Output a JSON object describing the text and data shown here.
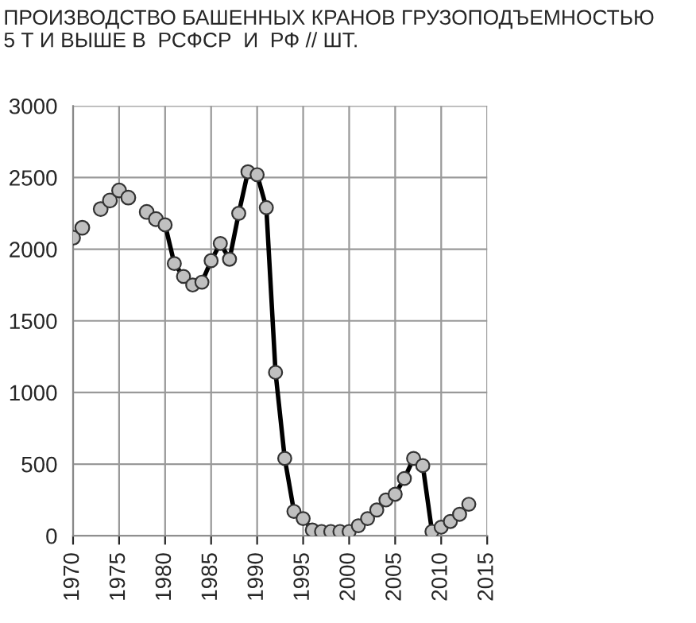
{
  "chart_data": {
    "type": "line",
    "title": "ПРОИЗВОДСТВО БАШЕННЫХ КРАНОВ ГРУЗОПОДЪЕМНОСТЬЮ\n5 Т И ВЫШЕ В  РСФСР  И  РФ // ШТ.",
    "series": [
      {
        "type": "scatter",
        "color": "#c0c0c0",
        "x": [
          1970,
          1971,
          1973,
          1974,
          1975,
          1976,
          1978,
          1979
        ],
        "values": [
          2080,
          2150,
          2280,
          2340,
          2410,
          2360,
          2260,
          2210
        ]
      },
      {
        "color": "#000000",
        "x": [
          1980,
          1981,
          1982,
          1983,
          1984,
          1985,
          1986,
          1987,
          1988,
          1989,
          1990,
          1991,
          1992,
          1993,
          1994,
          1995,
          1996,
          1997,
          1998,
          1999,
          2000,
          2001,
          2002,
          2003,
          2004,
          2005,
          2006,
          2007,
          2008,
          2009,
          2010,
          2011,
          2012,
          2013
        ],
        "values": [
          2170,
          1900,
          1810,
          1750,
          1770,
          1920,
          2040,
          1930,
          2250,
          2540,
          2520,
          2290,
          1140,
          540,
          170,
          120,
          40,
          30,
          30,
          30,
          30,
          70,
          120,
          180,
          250,
          290,
          400,
          540,
          490,
          30,
          60,
          100,
          150,
          220
        ]
      }
    ],
    "xlim": [
      1970,
      2015
    ],
    "xticks": [
      1970,
      1975,
      1980,
      1985,
      1990,
      1995,
      2000,
      2005,
      2010,
      2015
    ],
    "ylim": [
      0,
      3000
    ],
    "yticks": [
      0,
      500,
      1000,
      1500,
      2000,
      2500,
      3000
    ],
    "grid": true,
    "marker": "circle",
    "line_style": "solid"
  }
}
